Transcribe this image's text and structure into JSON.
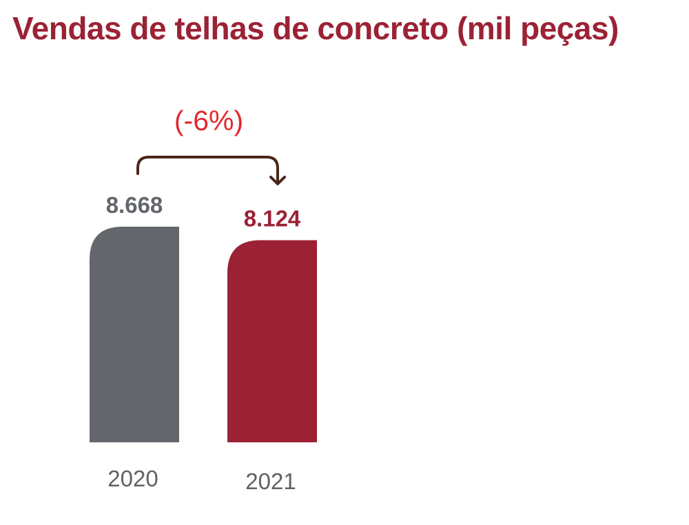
{
  "chart_data": {
    "type": "bar",
    "title": "Vendas de telhas de concreto (mil peças)",
    "categories": [
      "2020",
      "2021"
    ],
    "values": [
      8668,
      8124
    ],
    "value_labels": [
      "8.668",
      "8.124"
    ],
    "colors": [
      "#63666b",
      "#9b2235"
    ],
    "label_colors": [
      "#63666b",
      "#9b2235"
    ],
    "annotation": {
      "text": "(-6%)",
      "color": "#e2282d",
      "arrow_color": "#4a2619"
    },
    "xlabel": "",
    "ylabel": "",
    "grid": false,
    "legend": "none"
  }
}
